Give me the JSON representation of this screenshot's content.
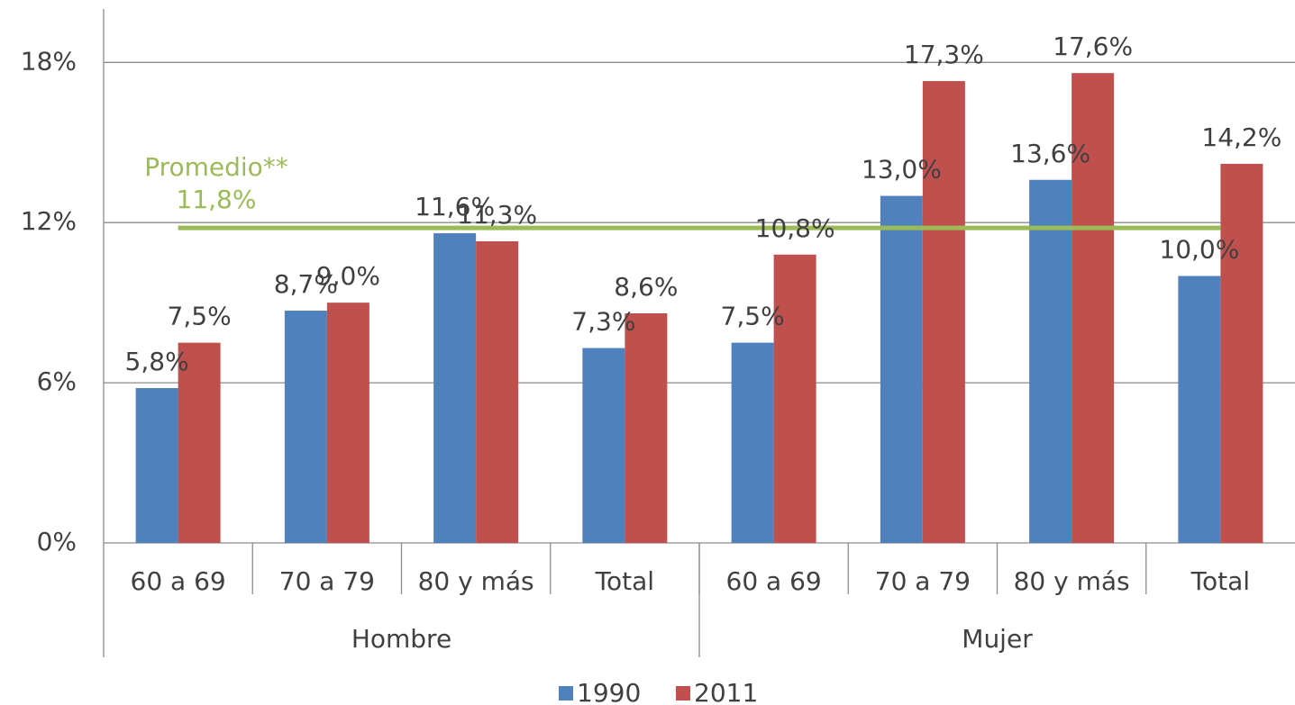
{
  "chart_data": {
    "type": "bar",
    "categories": [
      "60 a 69",
      "70 a 79",
      "80 y más",
      "Total",
      "60 a 69",
      "70 a 79",
      "80 y más",
      "Total"
    ],
    "groups": [
      "Hombre",
      "Mujer"
    ],
    "series": [
      {
        "name": "1990",
        "color": "#4f81bd",
        "values": [
          5.8,
          8.7,
          11.6,
          7.3,
          7.5,
          13.0,
          13.6,
          10.0
        ],
        "value_labels": [
          "5,8%",
          "8,7%",
          "11,6%",
          "7,3%",
          "7,5%",
          "13,0%",
          "13,6%",
          "10,0%"
        ]
      },
      {
        "name": "2011",
        "color": "#c0504d",
        "values": [
          7.5,
          9.0,
          11.3,
          8.6,
          10.8,
          17.3,
          17.6,
          14.2
        ],
        "value_labels": [
          "7,5%",
          "9,0%",
          "11,3%",
          "8,6%",
          "10,8%",
          "17,3%",
          "17,6%",
          "14,2%"
        ]
      }
    ],
    "average": {
      "label": "Promedio**",
      "value": 11.8,
      "value_label": "11,8%",
      "color": "#9bbb59"
    },
    "ylim": [
      0,
      20
    ],
    "yticks": [
      {
        "value": 0,
        "label": "0%"
      },
      {
        "value": 6,
        "label": "6%"
      },
      {
        "value": 12,
        "label": "12%"
      },
      {
        "value": 18,
        "label": "18%"
      }
    ],
    "grid": true
  }
}
